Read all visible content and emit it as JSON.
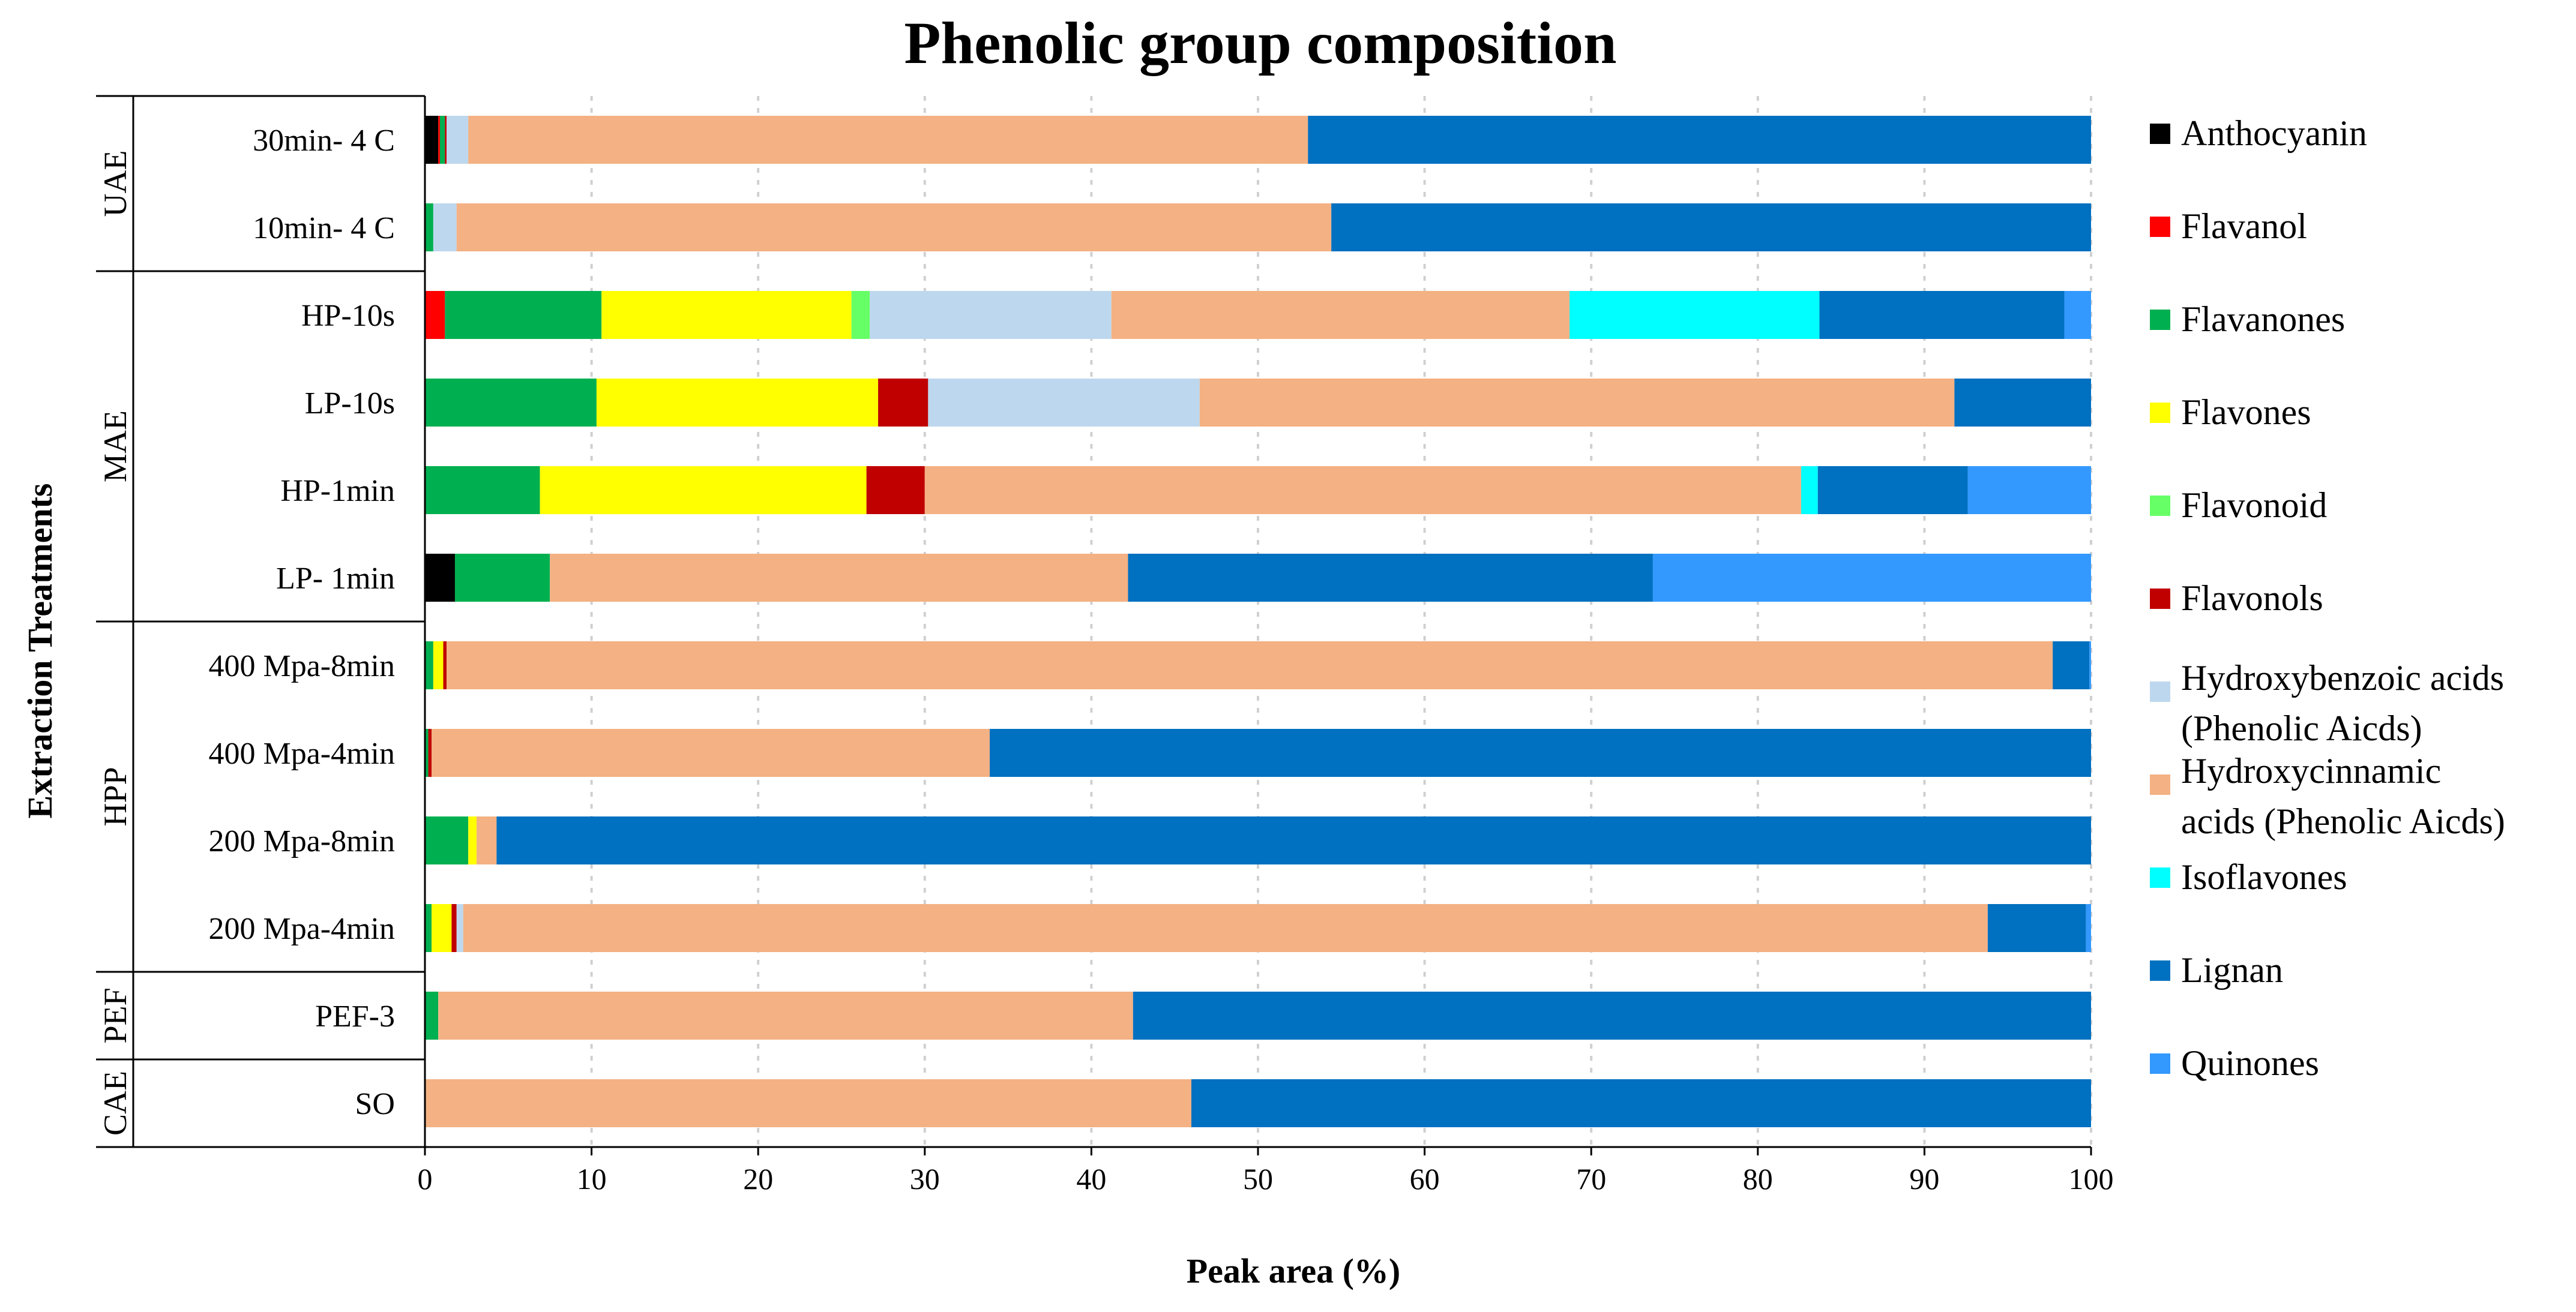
{
  "chart_data": {
    "type": "bar",
    "orientation": "horizontal",
    "stacked": true,
    "title": "Phenolic group composition",
    "xlabel": "Peak area (%)",
    "ylabel": "Extraction Treatments",
    "xlim": [
      0,
      100
    ],
    "xticks": [
      "0",
      "10",
      "20",
      "30",
      "40",
      "50",
      "60",
      "70",
      "80",
      "90",
      "100"
    ],
    "grid": "vertical dashed",
    "legend_position": "right",
    "groups": [
      {
        "name": "UAE",
        "count": 2
      },
      {
        "name": "MAE",
        "count": 4
      },
      {
        "name": "HPP",
        "count": 4
      },
      {
        "name": "PEF",
        "count": 1
      },
      {
        "name": "CAE",
        "count": 1
      }
    ],
    "categories": [
      "30min- 4 C",
      "10min- 4 C",
      "HP-10s",
      "LP-10s",
      "HP-1min",
      "LP- 1min",
      "400 Mpa-8min",
      "400 Mpa-4min",
      "200 Mpa-8min",
      "200 Mpa-4min",
      "PEF-3",
      "SO"
    ],
    "series": [
      {
        "name": "Anthocyanin",
        "color": "#000000",
        "values": [
          0.8,
          0,
          0,
          0,
          0,
          1.8,
          0,
          0,
          0,
          0,
          0,
          0
        ]
      },
      {
        "name": "Flavanol",
        "color": "#ff0000",
        "values": [
          0.1,
          0,
          1.2,
          0,
          0,
          0,
          0,
          0,
          0,
          0,
          0,
          0
        ]
      },
      {
        "name": "Flavanones",
        "color": "#00b050",
        "values": [
          0.3,
          0.5,
          9.4,
          10.3,
          6.9,
          5.7,
          0.5,
          0.2,
          2.6,
          0.4,
          0.8,
          0
        ]
      },
      {
        "name": "Flavones",
        "color": "#ffff00",
        "values": [
          0,
          0,
          15,
          16.9,
          19.6,
          0,
          0.6,
          0,
          0.5,
          1.2,
          0,
          0
        ]
      },
      {
        "name": "Flavonoid",
        "color": "#66ff66",
        "values": [
          0,
          0,
          1.1,
          0,
          0,
          0,
          0,
          0,
          0,
          0,
          0,
          0
        ]
      },
      {
        "name": "Flavonols",
        "color": "#c00000",
        "values": [
          0.1,
          0,
          0,
          3,
          3.5,
          0,
          0.2,
          0.2,
          0,
          0.3,
          0,
          0
        ]
      },
      {
        "name": "Hydroxybenzoic acids (Phenolic Aicds)",
        "label_lines": [
          "Hydroxybenzoic acids",
          "(Phenolic Aicds)"
        ],
        "color": "#bdd7ee",
        "values": [
          1.3,
          1.4,
          14.5,
          16.3,
          0,
          0,
          0,
          0,
          0,
          0.4,
          0,
          0
        ]
      },
      {
        "name": "Hydroxycinnamic acids (Phenolic Aicds)",
        "label_lines": [
          "Hydroxycinnamic",
          "acids (Phenolic Aicds)"
        ],
        "color": "#f4b183",
        "values": [
          50.4,
          52.5,
          27.5,
          45.3,
          52.6,
          34.7,
          96.4,
          33.5,
          1.2,
          91.5,
          41.7,
          46
        ]
      },
      {
        "name": "Isoflavones",
        "color": "#00ffff",
        "values": [
          0,
          0,
          15,
          0,
          1,
          0,
          0,
          0,
          0,
          0,
          0,
          0
        ]
      },
      {
        "name": "Lignan",
        "color": "#0070c0",
        "values": [
          47,
          45.6,
          14.7,
          8.2,
          9,
          31.5,
          2.2,
          66.1,
          95.7,
          5.9,
          57.5,
          54
        ]
      },
      {
        "name": "Quinones",
        "color": "#3399ff",
        "values": [
          0,
          0,
          1.6,
          0,
          7.4,
          26.3,
          0.1,
          0,
          0,
          0.3,
          0,
          0
        ]
      }
    ]
  }
}
